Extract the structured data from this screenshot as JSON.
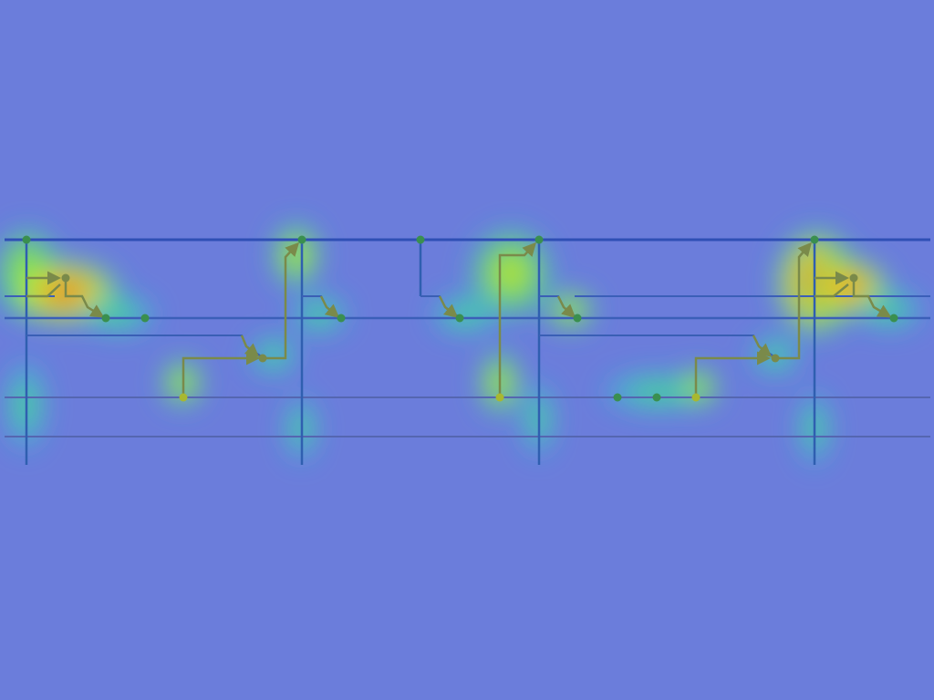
{
  "colors": {
    "background": "#6b7ddb",
    "wire_dark": "#2f4fb5",
    "wire_mid": "#3b5fb8",
    "wire_faint": "#5566b0",
    "trace": "#7a8a4a",
    "node": "#3a8f4f",
    "heat_hot": "#f04a1a",
    "heat_warm": "#f5c21a",
    "heat_mid": "#c8f020",
    "heat_cool": "#30e07a",
    "heat_cold": "#28c8f0"
  },
  "diagram": {
    "kind": "circuit-trace-heatmap-overlay",
    "rails": [
      "rail-top",
      "rail-upper",
      "rail-mid",
      "rail-lower",
      "rail-bottom"
    ],
    "hotspot_intensity": [
      0.95,
      0.75,
      0.6,
      0.9,
      0.65,
      0.7,
      0.95
    ]
  }
}
